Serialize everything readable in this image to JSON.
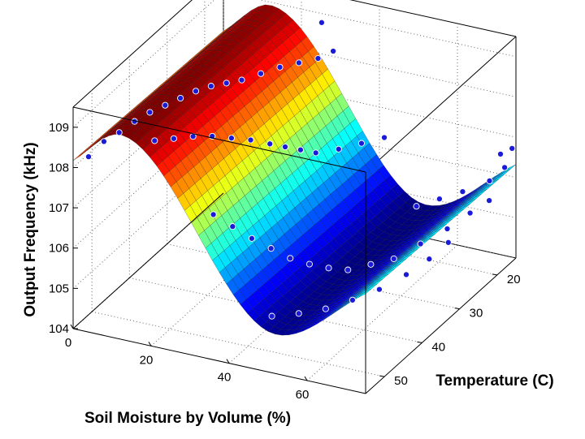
{
  "chart_data": {
    "type": "surface3d",
    "title": "",
    "xlabel": "Soil Moisture by Volume (%)",
    "ylabel": "Temperature (C)",
    "zlabel": "Output Frequency (kHz)",
    "xlim": [
      0,
      75
    ],
    "ylim": [
      15,
      55
    ],
    "zlim": [
      104,
      109.5
    ],
    "xticks": [
      "0",
      "20",
      "40",
      "60"
    ],
    "yticks": [
      "20",
      "30",
      "40",
      "50"
    ],
    "zticks": [
      "104",
      "105",
      "106",
      "107",
      "108",
      "109"
    ],
    "grid": true,
    "colormap": "jet",
    "surface": {
      "x_range": [
        0,
        75
      ],
      "y_range": [
        15,
        55
      ],
      "z_at_x0": 108.1,
      "z_peak": 109.0,
      "x_peak": 12,
      "z_min": 104.9,
      "x_min": 52,
      "z_at_x75": 106.4
    },
    "series": [
      {
        "marker": "blue-dot",
        "points": [
          [
            3,
            54,
            108.25
          ],
          [
            5,
            52,
            108.5
          ],
          [
            7,
            50,
            108.6
          ],
          [
            9,
            48,
            108.75
          ],
          [
            11,
            46,
            108.85
          ],
          [
            13,
            44,
            108.9
          ],
          [
            15,
            42,
            108.95
          ],
          [
            17,
            40,
            109.0
          ],
          [
            19,
            38,
            109.0
          ],
          [
            21,
            36,
            108.95
          ],
          [
            23,
            34,
            108.9
          ],
          [
            25,
            31,
            108.85
          ],
          [
            27,
            28,
            108.8
          ],
          [
            29,
            25,
            108.7
          ],
          [
            31,
            22,
            108.6
          ],
          [
            32,
            19,
            108.55
          ],
          [
            30,
            20,
            109.3
          ],
          [
            18,
            52,
            108.8
          ],
          [
            21,
            50,
            108.75
          ],
          [
            24,
            48,
            108.7
          ],
          [
            27,
            46,
            108.6
          ],
          [
            30,
            44,
            108.45
          ],
          [
            33,
            42,
            108.3
          ],
          [
            36,
            40,
            108.1
          ],
          [
            38,
            38,
            107.9
          ],
          [
            40,
            36,
            107.7
          ],
          [
            42,
            34,
            107.5
          ],
          [
            44,
            30,
            107.3
          ],
          [
            46,
            26,
            107.15
          ],
          [
            48,
            22,
            107.0
          ],
          [
            35,
            54,
            107.5
          ],
          [
            38,
            52,
            107.1
          ],
          [
            41,
            50,
            106.7
          ],
          [
            44,
            48,
            106.35
          ],
          [
            47,
            46,
            106.0
          ],
          [
            50,
            44,
            105.75
          ],
          [
            53,
            42,
            105.55
          ],
          [
            56,
            40,
            105.4
          ],
          [
            59,
            37,
            105.35
          ],
          [
            62,
            34,
            105.3
          ],
          [
            65,
            30,
            105.4
          ],
          [
            68,
            26,
            105.5
          ],
          [
            70,
            22,
            105.6
          ],
          [
            72,
            19,
            105.7
          ],
          [
            50,
            54,
            105.3
          ],
          [
            54,
            51,
            105.2
          ],
          [
            58,
            48,
            105.15
          ],
          [
            62,
            45,
            105.2
          ],
          [
            66,
            42,
            105.3
          ],
          [
            70,
            39,
            105.5
          ],
          [
            73,
            36,
            105.7
          ],
          [
            75,
            33,
            105.9
          ],
          [
            62,
            28,
            106.1
          ],
          [
            66,
            26,
            106.2
          ],
          [
            70,
            24,
            106.3
          ],
          [
            74,
            21,
            106.4
          ],
          [
            75,
            18,
            106.5
          ],
          [
            72,
            16,
            106.6
          ],
          [
            74,
            15,
            106.7
          ]
        ]
      }
    ]
  }
}
